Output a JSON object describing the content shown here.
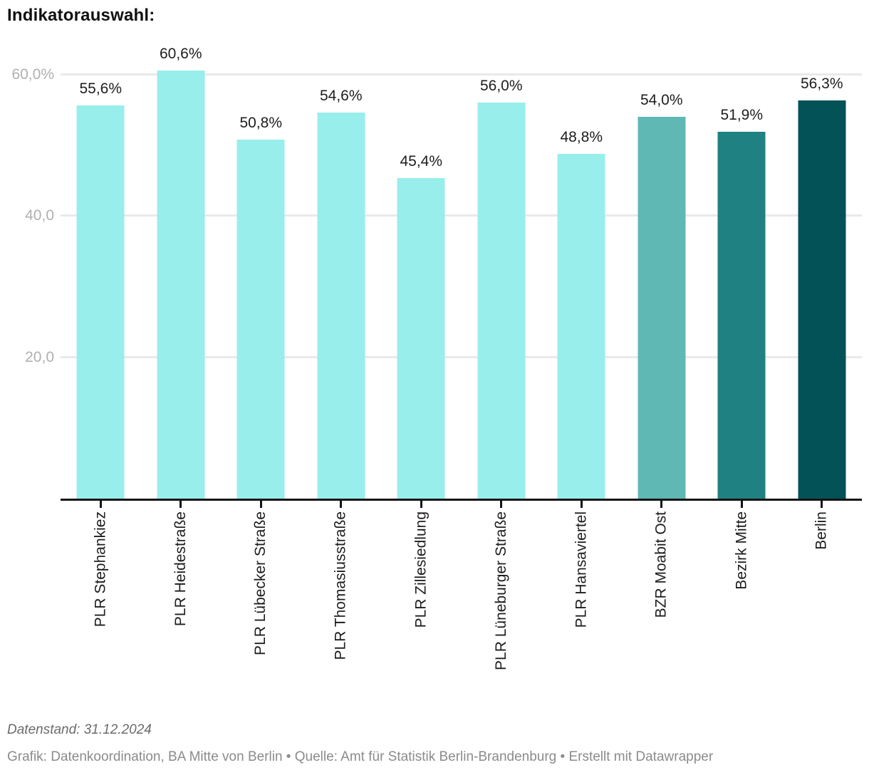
{
  "chart_data": {
    "type": "bar",
    "title": "Indikatorauswahl:",
    "categories": [
      "PLR Stephankiez",
      "PLR Heidestraße",
      "PLR Lübecker Straße",
      "PLR Thomasiusstraße",
      "PLR Zillesiedlung",
      "PLR Lüneburger Straße",
      "PLR Hansaviertel",
      "BZR Moabit Ost",
      "Bezirk Mitte",
      "Berlin"
    ],
    "values": [
      55.6,
      60.6,
      50.8,
      54.6,
      45.4,
      56.0,
      48.8,
      54.0,
      51.9,
      56.3
    ],
    "value_labels": [
      "55,6%",
      "60,6%",
      "50,8%",
      "54,6%",
      "45,4%",
      "56,0%",
      "48,8%",
      "54,0%",
      "51,9%",
      "56,3%"
    ],
    "bar_colors": [
      "#98eeea",
      "#98eeea",
      "#98eeea",
      "#98eeea",
      "#98eeea",
      "#98eeea",
      "#98eeea",
      "#5fb8b4",
      "#1f8181",
      "#025257"
    ],
    "xlabel": "",
    "ylabel": "",
    "ylim": [
      0,
      63.7
    ],
    "yticks": [
      {
        "value": 20,
        "label": "20,0"
      },
      {
        "value": 40,
        "label": "40,0"
      },
      {
        "value": 60,
        "label": "60,0%"
      }
    ],
    "grid": true,
    "legend": false
  },
  "footer": {
    "datenstand": "Datenstand: 31.12.2024",
    "credits": "Grafik: Datenkoordination, BA Mitte von Berlin • Quelle: Amt für Statistik Berlin-Brandenburg • Erstellt mit Datawrapper"
  },
  "colors": {
    "bar_light": "#98eeea",
    "bar_bzr": "#5fb8b4",
    "bar_bezirk": "#1f8181",
    "bar_berlin": "#025257",
    "gridline": "#e9e9e9",
    "axis": "#141414",
    "ytick_text": "#b0b0b0",
    "label_text": "#1d1d1d"
  }
}
